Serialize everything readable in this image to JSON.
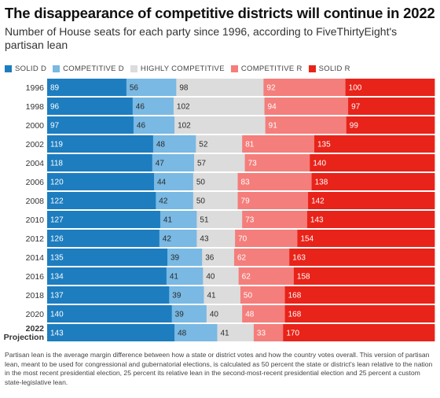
{
  "title": "The disappearance of competitive districts will continue in 2022",
  "subtitle": "Number of House seats for each party since 1996, according to FiveThirtyEight's partisan lean",
  "legend": [
    {
      "label": "SOLID D",
      "color": "#1d7dbf"
    },
    {
      "label": "COMPETITIVE D",
      "color": "#79b9e3"
    },
    {
      "label": "HIGHLY COMPETITIVE",
      "color": "#dcdcdc"
    },
    {
      "label": "COMPETITIVE R",
      "color": "#f47e7b"
    },
    {
      "label": "SOLID R",
      "color": "#e8231a"
    }
  ],
  "footnote": "Partisan lean is the average margin difference between how a state or district votes and how the country votes overall. This version of partisan lean, meant to be used for congressional and gubernatorial elections, is calculated as 50 percent the state or district's lean relative to the nation in the most recent presidential election, 25 percent its relative lean in the second-most-recent presidential election and 25 percent a custom state-legislative lean.",
  "chart_data": {
    "type": "bar",
    "orientation": "horizontal",
    "stacked": true,
    "categories": [
      "1996",
      "1998",
      "2000",
      "2002",
      "2004",
      "2006",
      "2008",
      "2010",
      "2012",
      "2014",
      "2016",
      "2018",
      "2020",
      "2022 Projection"
    ],
    "category_lines": [
      [
        "1996"
      ],
      [
        "1998"
      ],
      [
        "2000"
      ],
      [
        "2002"
      ],
      [
        "2004"
      ],
      [
        "2006"
      ],
      [
        "2008"
      ],
      [
        "2010"
      ],
      [
        "2012"
      ],
      [
        "2014"
      ],
      [
        "2016"
      ],
      [
        "2018"
      ],
      [
        "2020"
      ],
      [
        "2022",
        "Projection"
      ]
    ],
    "series": [
      {
        "name": "SOLID D",
        "color": "#1d7dbf",
        "label_color": "#ffffff",
        "values": [
          89,
          96,
          97,
          119,
          118,
          120,
          122,
          127,
          126,
          135,
          134,
          137,
          140,
          143
        ]
      },
      {
        "name": "COMPETITIVE D",
        "color": "#79b9e3",
        "label_color": "#2a2a2a",
        "values": [
          56,
          46,
          46,
          48,
          47,
          44,
          42,
          41,
          42,
          39,
          41,
          39,
          39,
          48
        ]
      },
      {
        "name": "HIGHLY COMPETITIVE",
        "color": "#dcdcdc",
        "label_color": "#2a2a2a",
        "values": [
          98,
          102,
          102,
          52,
          57,
          50,
          50,
          51,
          43,
          36,
          40,
          41,
          40,
          41
        ]
      },
      {
        "name": "COMPETITIVE R",
        "color": "#f47e7b",
        "label_color": "#ffffff",
        "values": [
          92,
          94,
          91,
          81,
          73,
          83,
          79,
          73,
          70,
          62,
          62,
          50,
          48,
          33
        ]
      },
      {
        "name": "SOLID R",
        "color": "#e8231a",
        "label_color": "#ffffff",
        "values": [
          100,
          97,
          99,
          135,
          140,
          138,
          142,
          143,
          154,
          163,
          158,
          168,
          168,
          170
        ]
      }
    ],
    "total": 435
  }
}
